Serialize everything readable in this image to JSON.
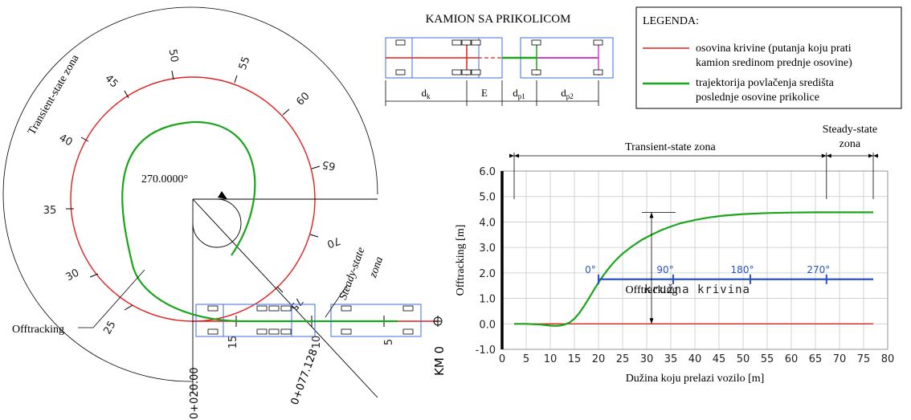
{
  "truck_title": "KAMION SA PRIKOLICOM",
  "truck_dims": {
    "dk": "d",
    "dk_sub": "k",
    "e": "E",
    "dp1": "d",
    "dp1_sub": "p1",
    "dp2": "d",
    "dp2_sub": "p2"
  },
  "legend": {
    "title": "LEGENDA:",
    "red_line1": "osovina krivine (putanja koju prati",
    "red_line2": "kamion sredinom prednje osovine)",
    "green_line1": "trajektorija povlačenja središta",
    "green_line2": "poslednje osovine prikolice"
  },
  "left": {
    "transient_label": "Transient-state zona",
    "angle_label": "270.0000°",
    "steady_line1": "Steady-state",
    "steady_line2": "zona",
    "offtracking_label": "Offtracking",
    "station_start": "0+020.00",
    "station_end": "0+077.128",
    "km_label": "KM 0",
    "arc_ticks": [
      "25",
      "30",
      "35",
      "40",
      "45",
      "50",
      "55",
      "60",
      "65",
      "70",
      "75"
    ],
    "straight_ticks": [
      "15",
      "10",
      "5"
    ]
  },
  "chart_data": {
    "type": "line",
    "xlabel": "Dužina koju prelazi vozilo [m]",
    "ylabel": "Offtracking [m]",
    "xlim": [
      0,
      80
    ],
    "ylim": [
      -1,
      6
    ],
    "x_ticks": [
      "0",
      "5",
      "10",
      "15",
      "20",
      "25",
      "30",
      "35",
      "40",
      "45",
      "50",
      "55",
      "60",
      "65",
      "70",
      "75",
      "80"
    ],
    "y_ticks": [
      "-1.0",
      "0.0",
      "1.0",
      "2.0",
      "3.0",
      "4.0",
      "5.0",
      "6.0"
    ],
    "grid": true,
    "series": [
      {
        "color": "#e0201c",
        "x": [
          2.5,
          77
        ],
        "y": [
          0,
          0
        ]
      },
      {
        "color": "#1aa51a",
        "x": [
          2.5,
          5,
          8,
          10,
          11,
          12,
          13,
          14,
          15,
          16,
          17,
          18,
          19,
          20,
          21,
          22,
          23,
          24,
          25,
          27,
          29,
          31,
          33,
          35,
          37,
          40,
          43,
          46,
          50,
          55,
          60,
          65,
          70,
          77
        ],
        "y": [
          0,
          0,
          -0.03,
          -0.07,
          -0.08,
          -0.07,
          -0.03,
          0.05,
          0.2,
          0.42,
          0.7,
          1.0,
          1.32,
          1.62,
          1.9,
          2.15,
          2.38,
          2.58,
          2.76,
          3.05,
          3.3,
          3.5,
          3.68,
          3.82,
          3.95,
          4.08,
          4.18,
          4.25,
          4.31,
          4.35,
          4.37,
          4.38,
          4.38,
          4.38
        ]
      }
    ],
    "annotations": {
      "transient": "Transient-state zona",
      "steady_line1": "Steady-state",
      "steady_line2": "zona",
      "offtracking": "Offtracking",
      "curve_label": "kružna krivina",
      "curve_marks": [
        "0°",
        "90°",
        "180°",
        "270°"
      ],
      "curve_mark_x": [
        20,
        35.5,
        51.5,
        67.3
      ],
      "curve_y": 1.75,
      "curve_color": "#2a52c8"
    }
  }
}
